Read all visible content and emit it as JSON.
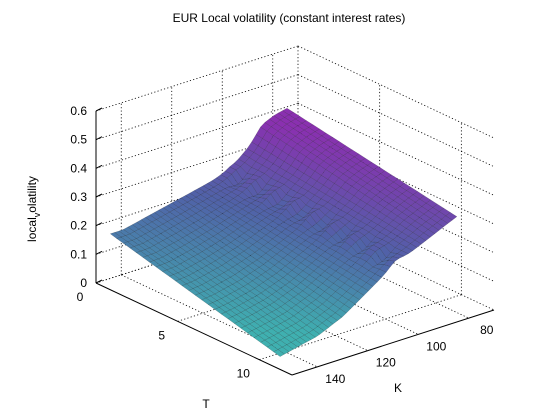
{
  "chart_data": {
    "type": "surface",
    "title": "EUR Local volatility (constant interest rates)",
    "xlabel": "T",
    "ylabel": "K",
    "zlabel": "local_volatility",
    "zlabel_display": {
      "base": "local",
      "sub": "v",
      "rest": "olatility"
    },
    "xlim": [
      0,
      12
    ],
    "ylim": [
      70,
      150
    ],
    "zlim": [
      0,
      0.6
    ],
    "x_ticks": [
      0,
      5,
      10
    ],
    "y_ticks": [
      80,
      100,
      120,
      140
    ],
    "z_ticks": [
      0,
      0.1,
      0.2,
      0.3,
      0.4,
      0.5,
      0.6
    ],
    "grid": true,
    "surface": {
      "T": [
        0.1,
        1,
        2,
        3,
        4,
        5,
        6,
        7,
        8,
        9,
        10,
        10.5
      ],
      "K": [
        75,
        80,
        85,
        90,
        95,
        100,
        105,
        110,
        115,
        120,
        125,
        130,
        135,
        140,
        145
      ],
      "local_volatility_at_T0.1": [
        0.4,
        0.39,
        0.37,
        0.31,
        0.27,
        0.24,
        0.23,
        0.22,
        0.21,
        0.2,
        0.19,
        0.18,
        0.17,
        0.16,
        0.16
      ],
      "local_volatility_at_T10.5": [
        0.3,
        0.28,
        0.26,
        0.24,
        0.22,
        0.2,
        0.17,
        0.14,
        0.11,
        0.08,
        0.06,
        0.04,
        0.03,
        0.02,
        0.01
      ]
    },
    "colors": {
      "low": "#3fb0b0",
      "mid": "#5062a8",
      "high": "#8a30b0"
    }
  }
}
